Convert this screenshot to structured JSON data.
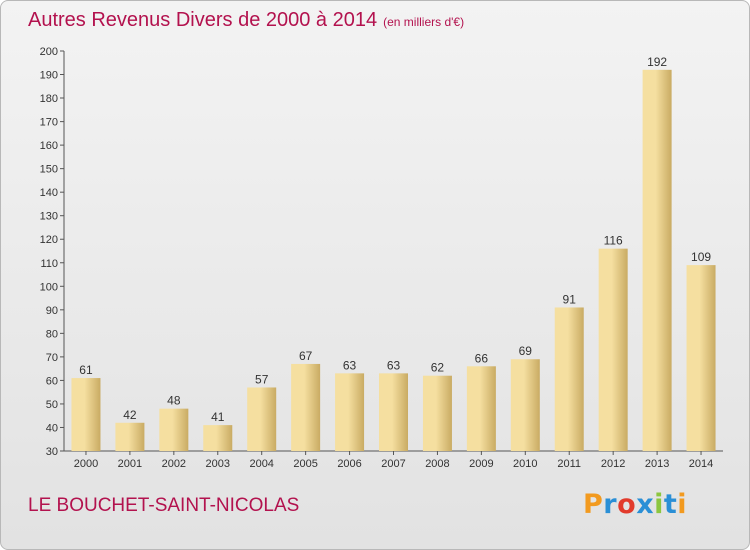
{
  "header": {
    "title": "Autres Revenus Divers de 2000 à 2014",
    "subtitle": "(en milliers d'€)"
  },
  "footer": {
    "commune": "LE BOUCHET-SAINT-NICOLAS",
    "logo_text": "Proxiti"
  },
  "colors": {
    "title": "#b3124e",
    "bar_light": "#f5dfa0",
    "bar_dark": "#c9ab63",
    "logo": [
      "#f29a1f",
      "#2a8fd6",
      "#e23b2c",
      "#2a8fd6",
      "#8cc63f",
      "#2a8fd6",
      "#f29a1f"
    ]
  },
  "chart_data": {
    "type": "bar",
    "categories": [
      "2000",
      "2001",
      "2002",
      "2003",
      "2004",
      "2005",
      "2006",
      "2007",
      "2008",
      "2009",
      "2010",
      "2011",
      "2012",
      "2013",
      "2014"
    ],
    "values": [
      61,
      42,
      48,
      41,
      57,
      67,
      63,
      63,
      62,
      66,
      69,
      91,
      116,
      192,
      109
    ],
    "ylim": [
      30,
      200
    ],
    "yticks": [
      30,
      40,
      50,
      60,
      70,
      80,
      90,
      100,
      110,
      120,
      130,
      140,
      150,
      160,
      170,
      180,
      190,
      200
    ],
    "grid": false,
    "xlabel": "",
    "ylabel": ""
  }
}
